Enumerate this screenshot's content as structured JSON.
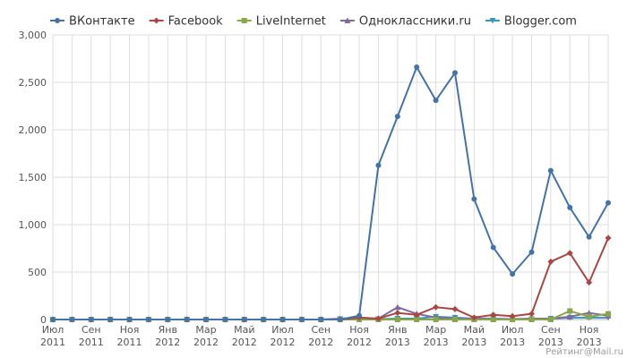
{
  "chart_data": {
    "type": "line",
    "title": "",
    "xlabel": "",
    "ylabel": "",
    "ylim": [
      0,
      3000
    ],
    "y_ticks": [
      "0",
      "500",
      "1,000",
      "1,500",
      "2,000",
      "2,500",
      "3,000"
    ],
    "grid": true,
    "legend_position": "top-center",
    "x_tick_labels": [
      [
        "Июл",
        "2011"
      ],
      [
        "Сен",
        "2011"
      ],
      [
        "Ноя",
        "2011"
      ],
      [
        "Янв",
        "2012"
      ],
      [
        "Мар",
        "2012"
      ],
      [
        "Май",
        "2012"
      ],
      [
        "Июл",
        "2012"
      ],
      [
        "Сен",
        "2012"
      ],
      [
        "Ноя",
        "2012"
      ],
      [
        "Янв",
        "2013"
      ],
      [
        "Мар",
        "2013"
      ],
      [
        "Май",
        "2013"
      ],
      [
        "Июл",
        "2013"
      ],
      [
        "Сен",
        "2013"
      ],
      [
        "Ноя",
        "2013"
      ]
    ],
    "x": [
      "2011-07",
      "2011-08",
      "2011-09",
      "2011-10",
      "2011-11",
      "2011-12",
      "2012-01",
      "2012-02",
      "2012-03",
      "2012-04",
      "2012-05",
      "2012-06",
      "2012-07",
      "2012-08",
      "2012-09",
      "2012-10",
      "2012-11",
      "2012-12",
      "2013-01",
      "2013-02",
      "2013-03",
      "2013-04",
      "2013-05",
      "2013-06",
      "2013-07",
      "2013-08",
      "2013-09",
      "2013-10",
      "2013-11",
      "2013-12"
    ],
    "series": [
      {
        "name": "ВКонтакте",
        "color": "#4572a7",
        "marker": "circle",
        "values": [
          0,
          0,
          0,
          0,
          0,
          0,
          0,
          0,
          0,
          0,
          0,
          0,
          0,
          0,
          0,
          0,
          40,
          1625,
          2140,
          2660,
          2310,
          2600,
          1270,
          760,
          480,
          710,
          1570,
          1180,
          870,
          1230
        ]
      },
      {
        "name": "Facebook",
        "color": "#aa4643",
        "marker": "diamond",
        "values": [
          0,
          0,
          0,
          0,
          0,
          0,
          0,
          0,
          0,
          0,
          0,
          0,
          0,
          0,
          0,
          0,
          20,
          10,
          70,
          50,
          130,
          110,
          20,
          50,
          35,
          60,
          610,
          700,
          390,
          860
        ]
      },
      {
        "name": "LiveInternet",
        "color": "#89a54e",
        "marker": "square",
        "values": [
          0,
          0,
          0,
          0,
          0,
          0,
          0,
          0,
          0,
          0,
          0,
          0,
          0,
          0,
          0,
          0,
          0,
          0,
          0,
          0,
          0,
          0,
          0,
          0,
          0,
          0,
          0,
          90,
          30,
          60
        ]
      },
      {
        "name": "Одноклассники.ru",
        "color": "#80699b",
        "marker": "triangle",
        "values": [
          0,
          0,
          0,
          0,
          0,
          0,
          0,
          0,
          0,
          0,
          0,
          0,
          0,
          0,
          0,
          10,
          20,
          10,
          130,
          60,
          20,
          10,
          10,
          5,
          5,
          10,
          10,
          30,
          70,
          40
        ]
      },
      {
        "name": "Blogger.com",
        "color": "#3d96ae",
        "marker": "triangle-down",
        "values": [
          0,
          0,
          0,
          0,
          0,
          0,
          0,
          0,
          0,
          0,
          0,
          0,
          0,
          0,
          0,
          5,
          5,
          5,
          10,
          10,
          30,
          20,
          10,
          10,
          5,
          5,
          10,
          20,
          20,
          20
        ]
      }
    ]
  },
  "watermark": "Рейтинг@Mail.ru"
}
